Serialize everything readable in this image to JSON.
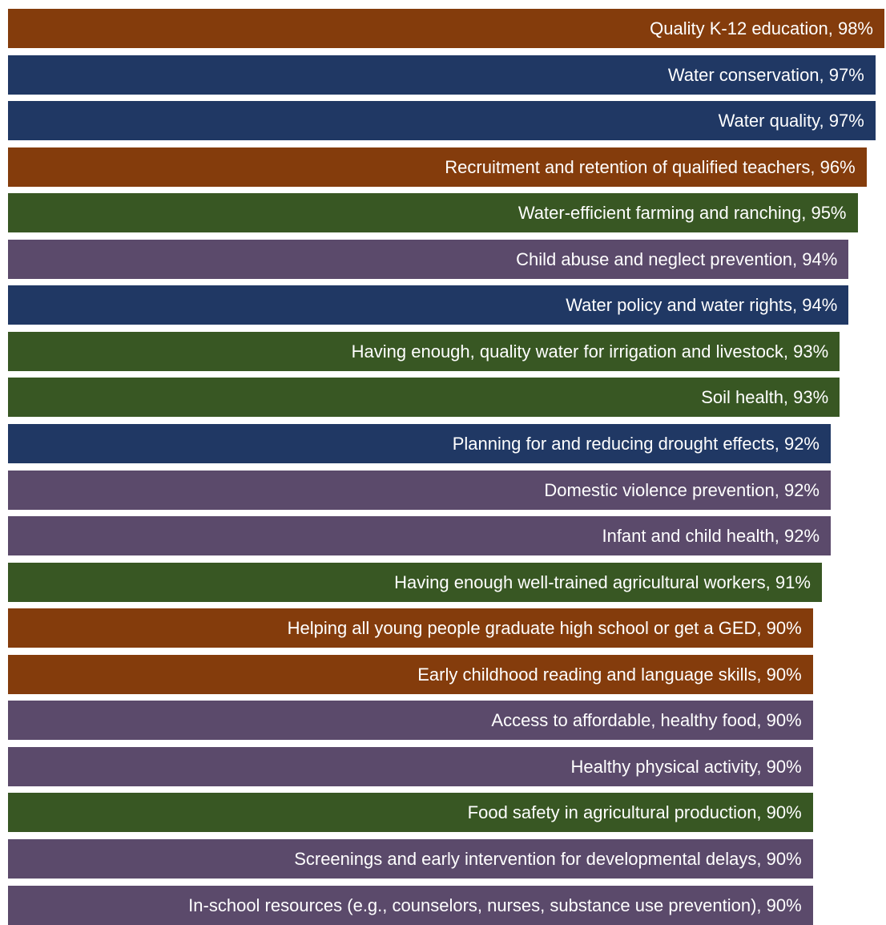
{
  "chart_data": {
    "type": "bar",
    "orientation": "horizontal",
    "xlim": [
      0,
      100
    ],
    "grid": false,
    "legend": "none",
    "unit": "%",
    "bars": [
      {
        "label": "Quality K-12 education",
        "value": 98,
        "text": "Quality K-12 education, 98%",
        "color": "#843c0c"
      },
      {
        "label": "Water conservation",
        "value": 97,
        "text": "Water conservation, 97%",
        "color": "#203864"
      },
      {
        "label": "Water quality",
        "value": 97,
        "text": "Water quality, 97%",
        "color": "#203864"
      },
      {
        "label": "Recruitment and retention of qualified teachers",
        "value": 96,
        "text": "Recruitment and retention of qualified teachers, 96%",
        "color": "#843c0c"
      },
      {
        "label": "Water-efficient farming and ranching",
        "value": 95,
        "text": "Water-efficient farming and ranching, 95%",
        "color": "#385723"
      },
      {
        "label": "Child abuse and neglect prevention",
        "value": 94,
        "text": "Child abuse and neglect prevention, 94%",
        "color": "#5b4a6b"
      },
      {
        "label": "Water policy and water rights",
        "value": 94,
        "text": "Water policy and water rights, 94%",
        "color": "#203864"
      },
      {
        "label": "Having enough, quality water for irrigation and livestock",
        "value": 93,
        "text": "Having enough, quality water for irrigation and livestock, 93%",
        "color": "#385723"
      },
      {
        "label": "Soil health",
        "value": 93,
        "text": "Soil health, 93%",
        "color": "#385723"
      },
      {
        "label": "Planning for and reducing drought effects",
        "value": 92,
        "text": "Planning for and reducing drought effects, 92%",
        "color": "#203864"
      },
      {
        "label": "Domestic violence prevention",
        "value": 92,
        "text": "Domestic violence prevention, 92%",
        "color": "#5b4a6b"
      },
      {
        "label": "Infant and child health",
        "value": 92,
        "text": "Infant and child health, 92%",
        "color": "#5b4a6b"
      },
      {
        "label": "Having enough well-trained agricultural workers",
        "value": 91,
        "text": "Having enough well-trained agricultural workers, 91%",
        "color": "#385723"
      },
      {
        "label": "Helping all young people graduate high school or get a GED",
        "value": 90,
        "text": "Helping all young people graduate high school or get a GED, 90%",
        "color": "#843c0c"
      },
      {
        "label": "Early childhood reading and language skills",
        "value": 90,
        "text": "Early childhood reading and language skills, 90%",
        "color": "#843c0c"
      },
      {
        "label": "Access to affordable, healthy food",
        "value": 90,
        "text": "Access to affordable, healthy food, 90%",
        "color": "#5b4a6b"
      },
      {
        "label": "Healthy physical activity",
        "value": 90,
        "text": "Healthy physical activity, 90%",
        "color": "#5b4a6b"
      },
      {
        "label": "Food safety in agricultural production",
        "value": 90,
        "text": "Food safety in agricultural production, 90%",
        "color": "#385723"
      },
      {
        "label": "Screenings and early intervention for developmental delays",
        "value": 90,
        "text": "Screenings and early intervention for developmental delays, 90%",
        "color": "#5b4a6b"
      },
      {
        "label": "In-school resources (e.g., counselors, nurses, substance use prevention)",
        "value": 90,
        "text": "In-school resources (e.g., counselors, nurses, substance use prevention), 90%",
        "color": "#5b4a6b"
      }
    ]
  }
}
